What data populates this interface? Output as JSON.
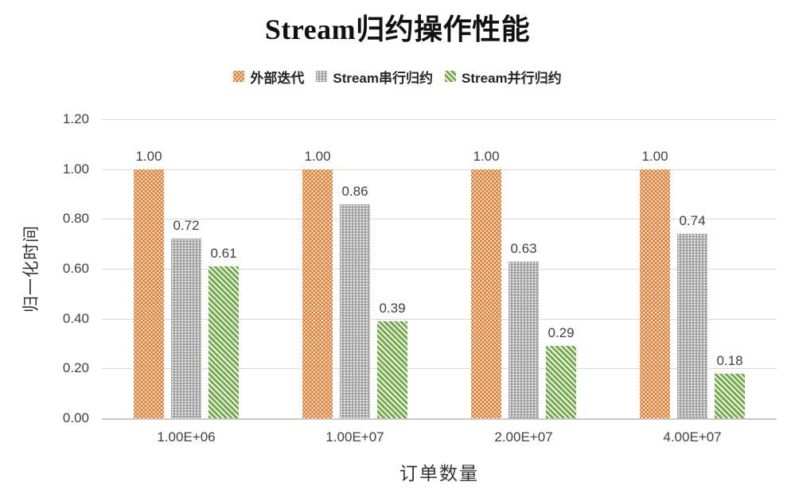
{
  "chart_data": {
    "type": "bar",
    "title": "Stream归约操作性能",
    "xlabel": "订单数量",
    "ylabel": "归一化时间",
    "categories": [
      "1.00E+06",
      "1.00E+07",
      "2.00E+07",
      "4.00E+07"
    ],
    "series": [
      {
        "name": "外部迭代",
        "color": "#ED7D31",
        "pattern": "diamond-dots",
        "values": [
          1.0,
          1.0,
          1.0,
          1.0
        ]
      },
      {
        "name": "Stream串行归约",
        "color": "#A6A6A6",
        "pattern": "grid-dots",
        "values": [
          0.72,
          0.86,
          0.63,
          0.74
        ]
      },
      {
        "name": "Stream并行归约",
        "color": "#70AD47",
        "pattern": "diagonal-stripes",
        "values": [
          0.61,
          0.39,
          0.29,
          0.18
        ]
      }
    ],
    "ylim": [
      0,
      1.2
    ],
    "yticks": [
      "0.00",
      "0.20",
      "0.40",
      "0.60",
      "0.80",
      "1.00",
      "1.20"
    ],
    "value_label_decimals": 2,
    "grid": true,
    "legend_position": "top",
    "colors": {
      "gridline": "#D9D9D9",
      "axis_line": "#C9C9C9",
      "tick_text": "#404040",
      "title_text": "#111111"
    }
  }
}
